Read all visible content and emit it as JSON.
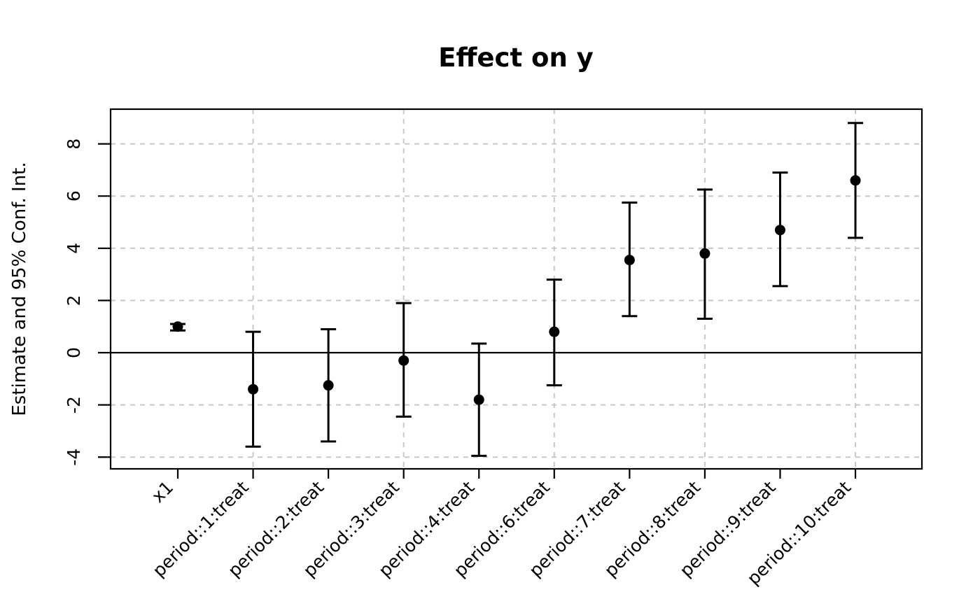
{
  "chart_data": {
    "type": "scatter",
    "subtype": "coefficient_plot_with_error_bars",
    "title": "Effect on y",
    "ylabel": "Estimate and 95% Conf. Int.",
    "xlabel": "",
    "categories": [
      "x1",
      "period::1:treat",
      "period::2:treat",
      "period::3:treat",
      "period::4:treat",
      "period::6:treat",
      "period::7:treat",
      "period::8:treat",
      "period::9:treat",
      "period::10:treat"
    ],
    "series": [
      {
        "name": "estimate",
        "values": [
          1.0,
          -1.4,
          -1.25,
          -0.3,
          -1.8,
          0.8,
          3.55,
          3.8,
          4.7,
          6.6
        ]
      },
      {
        "name": "ci_low",
        "values": [
          0.85,
          -3.6,
          -3.4,
          -2.45,
          -3.95,
          -1.25,
          1.4,
          1.3,
          2.55,
          4.4
        ]
      },
      {
        "name": "ci_high",
        "values": [
          1.1,
          0.8,
          0.9,
          1.9,
          0.35,
          2.8,
          5.75,
          6.25,
          6.9,
          8.8
        ]
      }
    ],
    "yticks": [
      8,
      6,
      4,
      2,
      0,
      -2,
      -4
    ],
    "ylim": [
      -4.45,
      9.33
    ],
    "zero_line_y": 0,
    "grid": true,
    "grid_style": "dashed",
    "grid_x_at_category_indices": [
      2,
      4,
      6,
      8,
      10
    ],
    "x_tick_label_rotation_deg": 45,
    "y_tick_label_rotation_deg": 90,
    "legend": null,
    "colors": {
      "points": "#000000",
      "error_bars": "#000000",
      "axis": "#000000",
      "grid": "#c8c8c8",
      "background": "#ffffff"
    }
  }
}
